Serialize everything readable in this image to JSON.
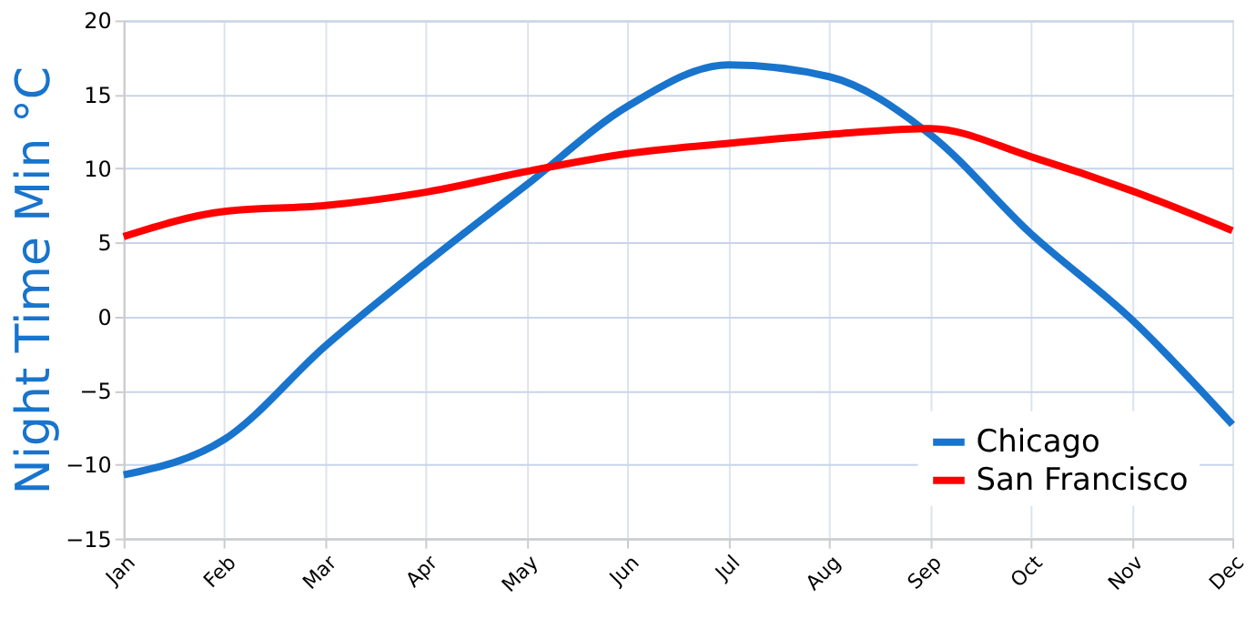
{
  "chart_data": {
    "type": "line",
    "ylabel": "Night Time Min °C",
    "categories": [
      "Jan",
      "Feb",
      "Mar",
      "Apr",
      "May",
      "Jun",
      "Jul",
      "Aug",
      "Sep",
      "Oct",
      "Nov",
      "Dec"
    ],
    "series": [
      {
        "name": "Chicago",
        "color": "#1874cd",
        "values": [
          -10.7,
          -8.3,
          -2,
          3.6,
          8.9,
          14.2,
          17,
          16.2,
          12.3,
          5.6,
          -0.2,
          -7.3
        ]
      },
      {
        "name": "San Francisco",
        "color": "#ff0000",
        "values": [
          5.4,
          7.1,
          7.5,
          8.4,
          9.8,
          11,
          11.7,
          12.3,
          12.7,
          10.8,
          8.5,
          5.8
        ]
      }
    ],
    "ylim": [
      -15,
      20
    ],
    "yticks": [
      -15,
      -10,
      -5,
      0,
      5,
      10,
      15,
      20
    ],
    "grid": true,
    "legend": "bottom right",
    "marker": "none",
    "line_style": "solid"
  }
}
